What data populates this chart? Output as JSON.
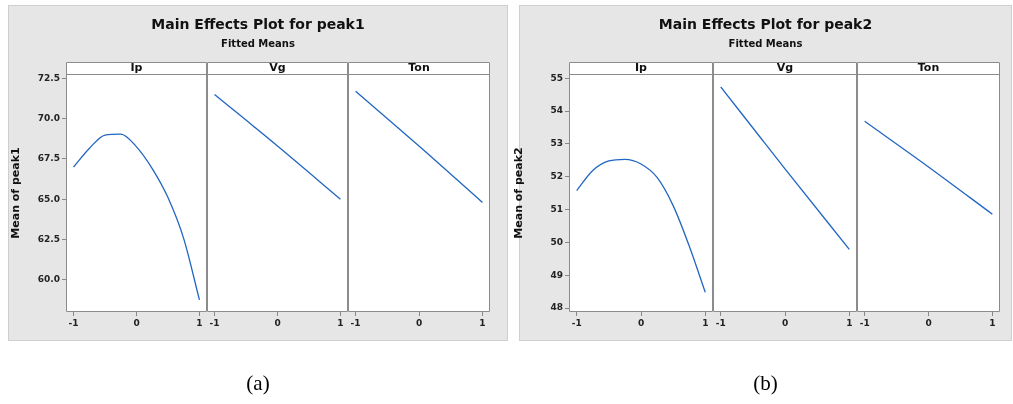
{
  "chart_data": [
    {
      "type": "line",
      "xlabel": "Ip",
      "ylabel": "Mean of peak1",
      "x": [
        -1,
        -0.75,
        -0.5,
        -0.25,
        0,
        0.25,
        0.5,
        0.75,
        1
      ],
      "series": [
        {
          "color": "#2166c2",
          "values": [
            67.0,
            68.15,
            68.98,
            69.04,
            68.25,
            66.9,
            65.1,
            62.55,
            58.75
          ]
        }
      ],
      "xlim": [
        -1.12,
        1.12
      ],
      "xticks": [
        -1,
        0,
        1
      ],
      "ylim": [
        58,
        72.77
      ],
      "yticks": [
        {
          "value": 60,
          "label": "60.0"
        },
        {
          "value": 62.5,
          "label": "62.5"
        },
        {
          "value": 65,
          "label": "65.0"
        },
        {
          "value": 67.5,
          "label": "67.5"
        },
        {
          "value": 70,
          "label": "70.0"
        },
        {
          "value": 72.5,
          "label": "72.5"
        }
      ]
    },
    {
      "type": "line",
      "title": "Main Effects Plot for peak1",
      "subtitle": "Fitted Means",
      "xlabel": "Vg",
      "annotations": [
        "(a)"
      ],
      "x": [
        -1,
        0,
        1
      ],
      "series": [
        {
          "color": "#2166c2",
          "values": [
            71.5,
            68.3,
            65.0
          ]
        }
      ],
      "xlim": [
        -1.12,
        1.12
      ],
      "xticks": [
        -1,
        0,
        1
      ],
      "ylim": [
        58,
        72.77
      ],
      "tick_labels": "x"
    },
    {
      "type": "line",
      "xlabel": "Ton",
      "x": [
        -1,
        0,
        1
      ],
      "series": [
        {
          "color": "#2166c2",
          "values": [
            71.7,
            68.3,
            64.8
          ]
        }
      ],
      "xlim": [
        -1.12,
        1.12
      ],
      "xticks": [
        -1,
        0,
        1
      ],
      "ylim": [
        58,
        72.77
      ],
      "tick_labels": "x"
    },
    {
      "type": "line",
      "xlabel": "Ip",
      "ylabel": "Mean of peak2",
      "x": [
        -1,
        -0.75,
        -0.5,
        -0.25,
        0,
        0.25,
        0.5,
        0.75,
        1
      ],
      "series": [
        {
          "color": "#2166c2",
          "values": [
            51.58,
            52.19,
            52.48,
            52.53,
            52.39,
            51.98,
            51.12,
            49.89,
            48.48
          ]
        }
      ],
      "xlim": [
        -1.12,
        1.12
      ],
      "xticks": [
        -1,
        0,
        1
      ],
      "ylim": [
        47.88,
        55.13
      ],
      "yticks": [
        48,
        49,
        50,
        51,
        52,
        53,
        54,
        55
      ]
    },
    {
      "type": "line",
      "title": "Main Effects Plot for peak2",
      "subtitle": "Fitted Means",
      "xlabel": "Vg",
      "annotations": [
        "(b)"
      ],
      "x": [
        -1,
        0,
        1
      ],
      "series": [
        {
          "color": "#2166c2",
          "values": [
            54.74,
            52.24,
            49.79
          ]
        }
      ],
      "xlim": [
        -1.12,
        1.12
      ],
      "xticks": [
        -1,
        0,
        1
      ],
      "ylim": [
        47.88,
        55.13
      ],
      "tick_labels": "x"
    },
    {
      "type": "line",
      "xlabel": "Ton",
      "x": [
        -1,
        0,
        1
      ],
      "series": [
        {
          "color": "#2166c2",
          "values": [
            53.69,
            52.3,
            50.86
          ]
        }
      ],
      "xlim": [
        -1.12,
        1.12
      ],
      "xticks": [
        -1,
        0,
        1
      ],
      "ylim": [
        47.88,
        55.13
      ],
      "tick_labels": "x"
    }
  ]
}
